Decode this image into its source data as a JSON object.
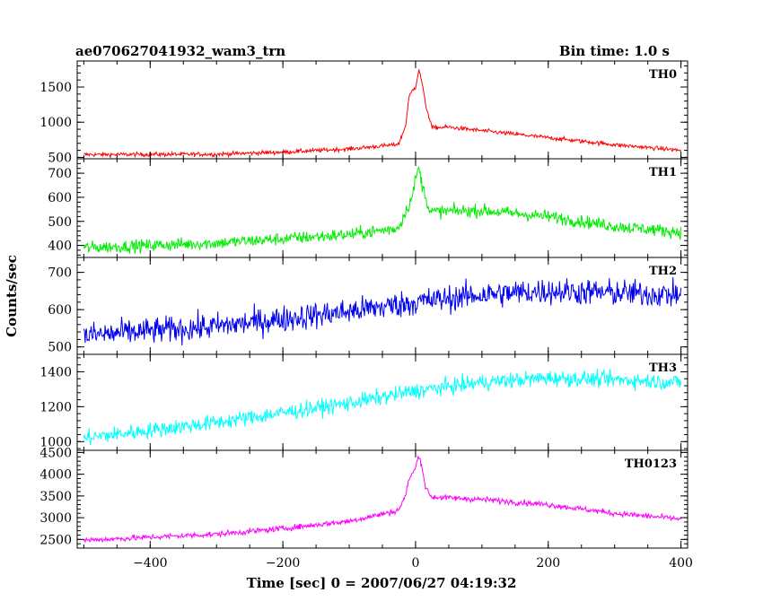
{
  "header": {
    "title": "ae070627041932_wam3_trn",
    "bin_time": "Bin time: 1.0 s"
  },
  "chart_data": {
    "type": "line",
    "title": "ae070627041932_wam3_trn",
    "xlabel": "Time [sec] 0 = 2007/06/27 04:19:32",
    "ylabel": "Counts/sec",
    "xlim": [
      -510,
      410
    ],
    "x_ticks": [
      -400,
      -200,
      0,
      200,
      400
    ],
    "x_tick_labels": [
      "−400",
      "−200",
      "0",
      "200",
      "400"
    ],
    "x": {
      "start": -500,
      "end": 400,
      "step": 1
    },
    "grid": false,
    "panels": [
      {
        "name": "TH0",
        "color": "#ff0000",
        "ylim": [
          480,
          1870
        ],
        "y_ticks": [
          500,
          1000,
          1500
        ],
        "baseline": {
          "points": [
            [
              -500,
              540
            ],
            [
              -300,
              545
            ],
            [
              -200,
              575
            ],
            [
              -100,
              620
            ],
            [
              -30,
              680
            ],
            [
              20,
              920
            ],
            [
              50,
              930
            ],
            [
              100,
              880
            ],
            [
              200,
              780
            ],
            [
              300,
              680
            ],
            [
              400,
              600
            ]
          ]
        },
        "burst": {
          "points": [
            [
              -25,
              700
            ],
            [
              -15,
              950
            ],
            [
              -10,
              1350
            ],
            [
              -5,
              1450
            ],
            [
              0,
              1500
            ],
            [
              5,
              1750
            ],
            [
              10,
              1550
            ],
            [
              15,
              1250
            ],
            [
              25,
              920
            ]
          ]
        },
        "noise": 25
      },
      {
        "name": "TH1",
        "color": "#00ee00",
        "ylim": [
          350,
          760
        ],
        "y_ticks": [
          400,
          500,
          600,
          700
        ],
        "baseline": {
          "points": [
            [
              -500,
              390
            ],
            [
              -300,
              410
            ],
            [
              -100,
              445
            ],
            [
              -30,
              470
            ],
            [
              20,
              540
            ],
            [
              100,
              545
            ],
            [
              200,
              520
            ],
            [
              300,
              480
            ],
            [
              400,
              455
            ]
          ]
        },
        "burst": {
          "points": [
            [
              -25,
              480
            ],
            [
              -15,
              540
            ],
            [
              -5,
              600
            ],
            [
              0,
              680
            ],
            [
              5,
              720
            ],
            [
              10,
              650
            ],
            [
              20,
              560
            ]
          ]
        },
        "noise": 22
      },
      {
        "name": "TH2",
        "color": "#0000ee",
        "ylim": [
          480,
          740
        ],
        "y_ticks": [
          500,
          600,
          700
        ],
        "baseline": {
          "points": [
            [
              -500,
              530
            ],
            [
              -300,
              555
            ],
            [
              -100,
              595
            ],
            [
              0,
              620
            ],
            [
              100,
              640
            ],
            [
              200,
              650
            ],
            [
              300,
              645
            ],
            [
              400,
              640
            ]
          ]
        },
        "noise": 30
      },
      {
        "name": "TH3",
        "color": "#00ffff",
        "ylim": [
          950,
          1500
        ],
        "y_ticks": [
          1000,
          1200,
          1400
        ],
        "baseline": {
          "points": [
            [
              -500,
              1020
            ],
            [
              -300,
              1110
            ],
            [
              -100,
              1220
            ],
            [
              0,
              1290
            ],
            [
              100,
              1340
            ],
            [
              200,
              1365
            ],
            [
              300,
              1355
            ],
            [
              400,
              1340
            ]
          ]
        },
        "noise": 38
      },
      {
        "name": "TH0123",
        "color": "#ff00ff",
        "ylim": [
          2300,
          4550
        ],
        "y_ticks": [
          2500,
          3000,
          3500,
          4000,
          4500
        ],
        "baseline": {
          "points": [
            [
              -500,
              2480
            ],
            [
              -300,
              2620
            ],
            [
              -200,
              2750
            ],
            [
              -100,
              2920
            ],
            [
              -30,
              3150
            ],
            [
              20,
              3480
            ],
            [
              100,
              3420
            ],
            [
              200,
              3300
            ],
            [
              300,
              3100
            ],
            [
              400,
              2970
            ]
          ]
        },
        "burst": {
          "points": [
            [
              -25,
              3200
            ],
            [
              -15,
              3500
            ],
            [
              -10,
              3900
            ],
            [
              -5,
              4000
            ],
            [
              0,
              4150
            ],
            [
              5,
              4450
            ],
            [
              10,
              4150
            ],
            [
              15,
              3700
            ],
            [
              25,
              3450
            ]
          ]
        },
        "noise": 55
      }
    ]
  }
}
